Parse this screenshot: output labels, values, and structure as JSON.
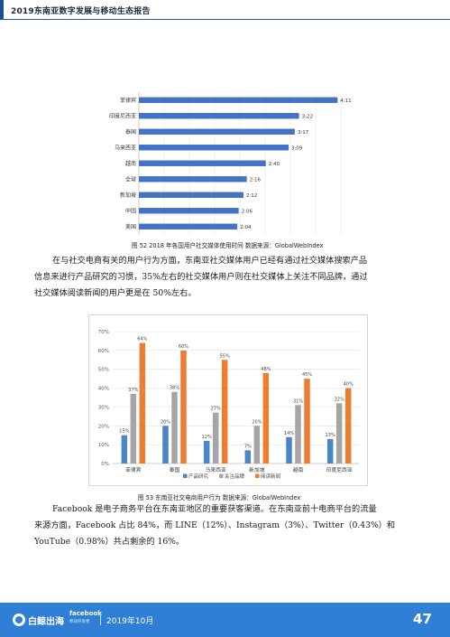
{
  "header": {
    "title": "2019东南亚数字发展与移动生态报告"
  },
  "figure52": {
    "caption": "图 52  2018 年各国用户社交媒体使用时间    数据来源：GlobalWebIndex",
    "chart_data": {
      "type": "bar",
      "orientation": "horizontal",
      "categories": [
        "菲律宾",
        "印度尼西亚",
        "泰国",
        "马来西亚",
        "越南",
        "全球",
        "新加坡",
        "中国",
        "美国"
      ],
      "values": [
        4.18,
        3.37,
        3.28,
        3.15,
        2.67,
        2.27,
        2.2,
        2.1,
        2.07
      ],
      "labels": [
        "4:11",
        "3:22",
        "3:17",
        "3:09",
        "2:40",
        "2:16",
        "2:12",
        "2:06",
        "2:04"
      ],
      "unit": "hours",
      "xlim": [
        0,
        4.25
      ],
      "grid": true,
      "colors": {
        "bar": "#4472c4"
      }
    }
  },
  "paragraph1": {
    "lines": [
      "在与社交电商有关的用户行为方面，东南亚社交媒体用户已经有通过社交媒体搜索产品",
      "信息来进行产品研究的习惯，35%左右的社交媒体用户则在社交媒体上关注不同品牌，通过",
      "社交媒体阅读新闻的用户更是在 50%左右。"
    ]
  },
  "figure53": {
    "caption": "图 53 东南亚社交电商用户行为   数据来源：GlobalWebIndex",
    "chart_data": {
      "type": "bar",
      "categories": [
        "菲律宾",
        "泰国",
        "马来西亚",
        "新加坡",
        "越南",
        "印度尼西亚"
      ],
      "series": [
        {
          "name": "产品研究",
          "values": [
            15,
            20,
            12,
            7,
            14,
            13
          ],
          "color": "#4a86c5"
        },
        {
          "name": "关注品牌",
          "values": [
            37,
            38,
            27,
            20,
            31,
            32
          ],
          "color": "#a5a5a5"
        },
        {
          "name": "阅读新闻",
          "values": [
            64,
            60,
            55,
            48,
            45,
            40
          ],
          "color": "#ed7d31"
        }
      ],
      "value_labels": [
        [
          "15%",
          "20%",
          "12%",
          "7%",
          "14%",
          "13%"
        ],
        [
          "37%",
          "38%",
          "27%",
          "20%",
          "31%",
          "32%"
        ],
        [
          "64%",
          "60%",
          "55%",
          "48%",
          "45%",
          "40%"
        ]
      ],
      "yticks": [
        "0%",
        "10%",
        "20%",
        "30%",
        "40%",
        "50%",
        "60%",
        "70%"
      ],
      "ylim": [
        0,
        70
      ],
      "grid": true,
      "legend": "bottom"
    }
  },
  "paragraph2": {
    "lines": [
      "Facebook 是电子商务平台在东南亚地区的重要获客渠道。在东南亚前十电商平台的流量",
      "来源方面，Facebook 占比 84%，而 LINE（12%）、Instagram（3%）、Twitter（0.43%）和",
      "YouTube（0.98%）共占剩余的 16%。"
    ]
  },
  "footer": {
    "brand": "白鲸出海",
    "partner": "facebook",
    "partner_sub": "移动开发者",
    "date": "2019年10月",
    "page": "47"
  },
  "colors": {
    "header_accent": "#1e4d8c",
    "footer_bg": "#2f7fd6"
  }
}
